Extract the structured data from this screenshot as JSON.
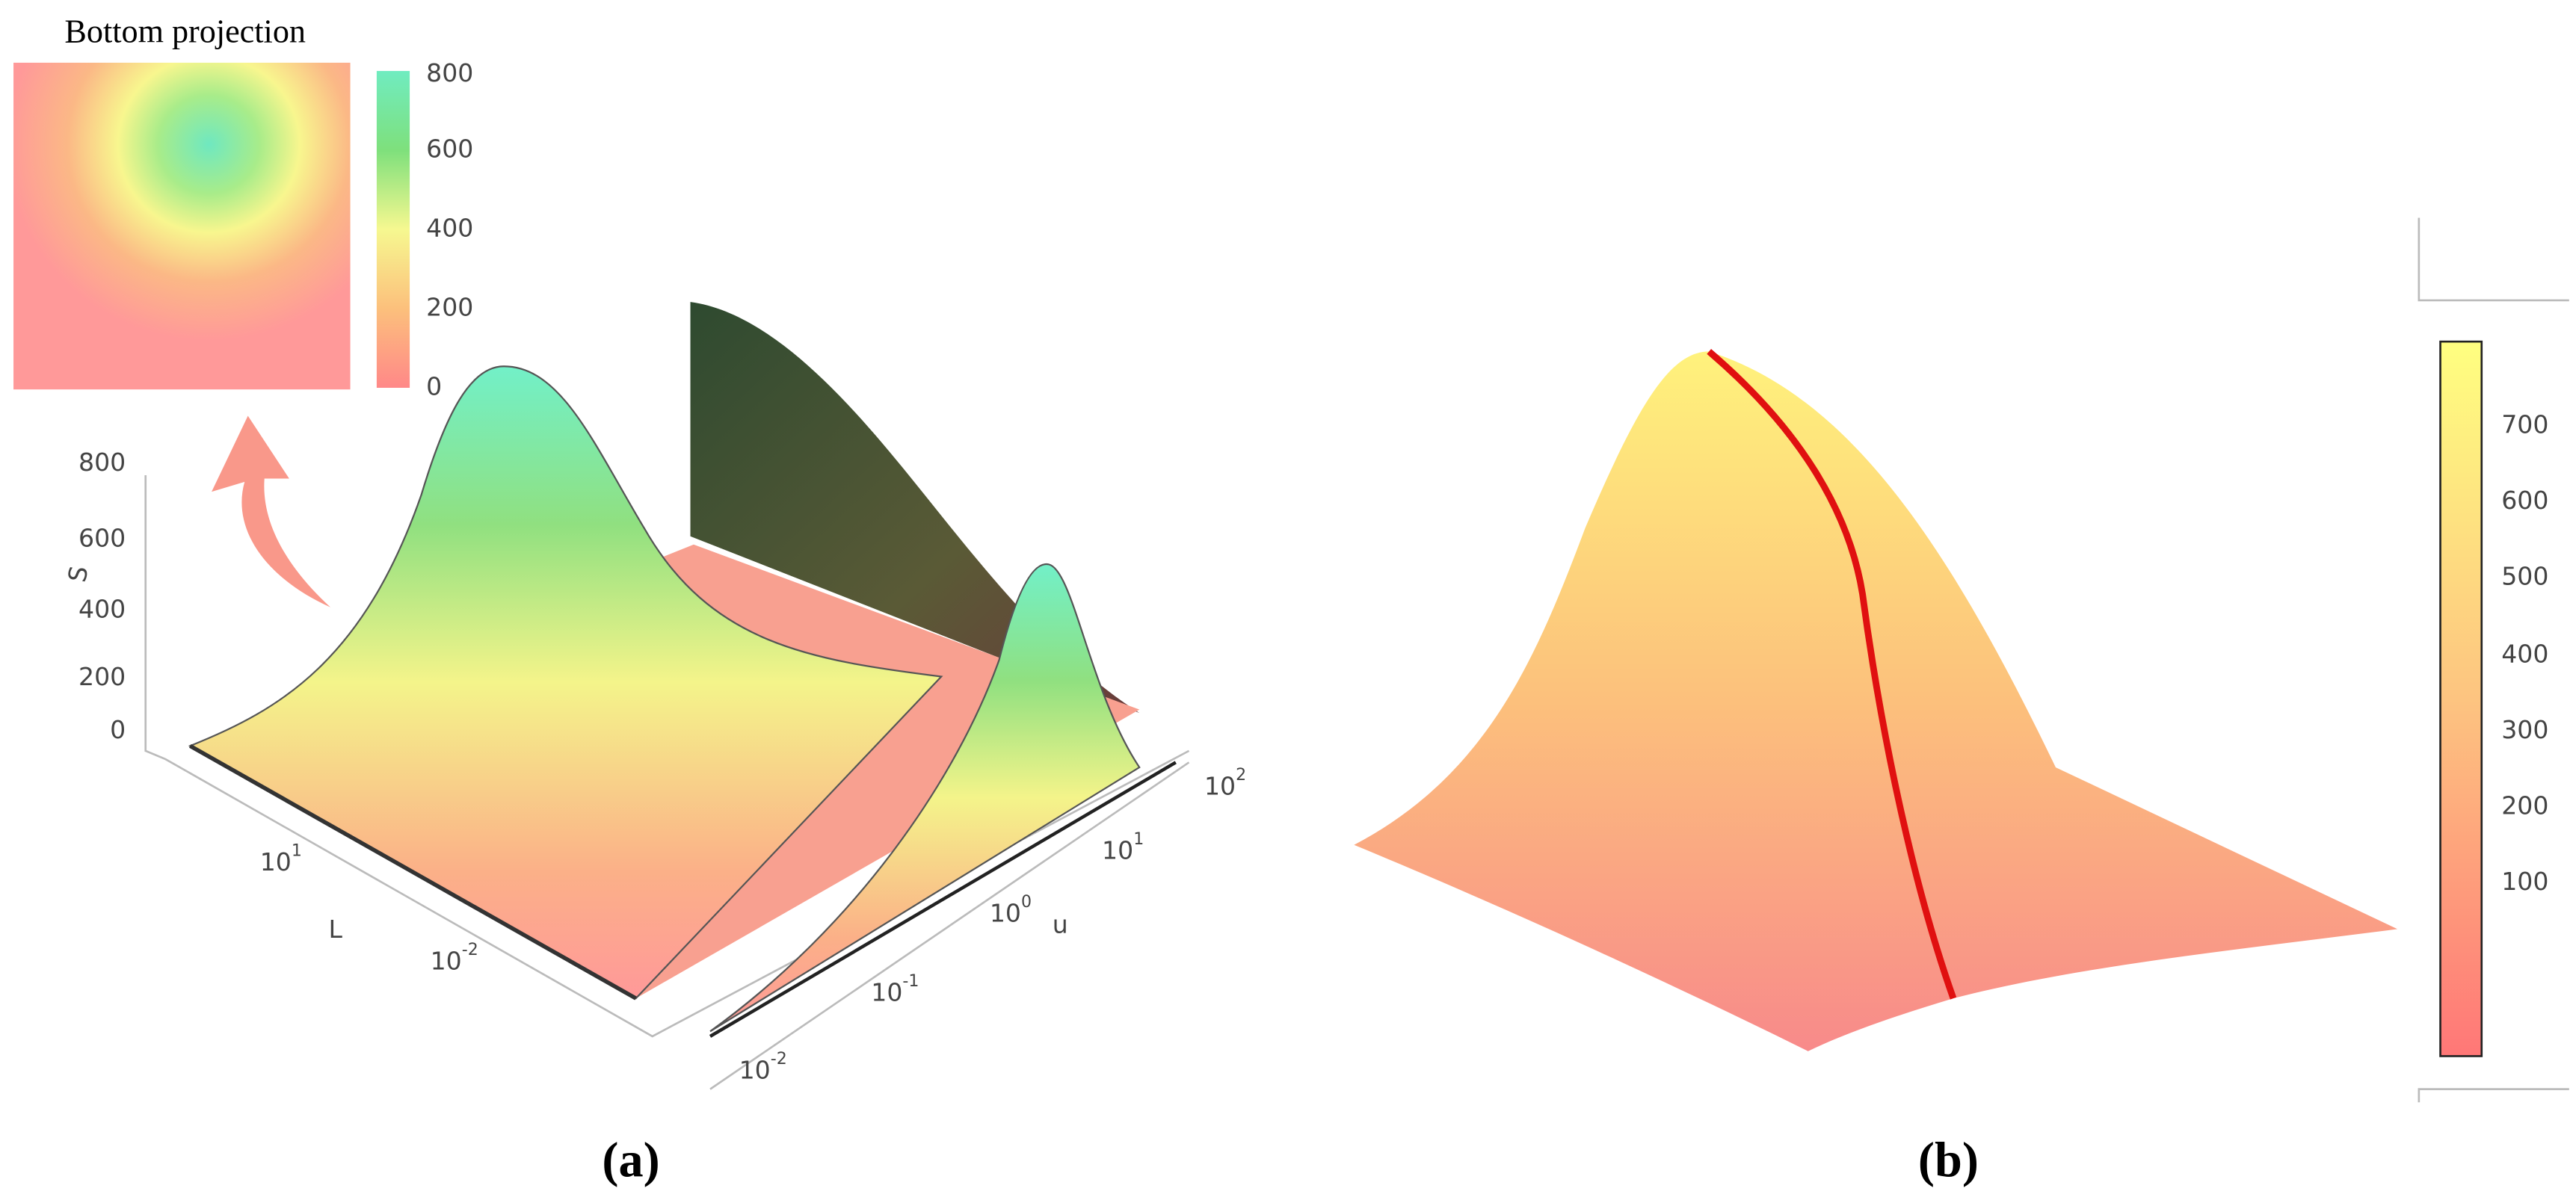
{
  "panel_a": {
    "label": "(a)",
    "inset": {
      "title": "Bottom projection",
      "colorbar_ticks": [
        800,
        600,
        400,
        200,
        0
      ]
    },
    "s_axis": {
      "label": "S",
      "ticks": [
        800,
        600,
        400,
        200,
        0
      ]
    },
    "l_axis": {
      "label": "L",
      "ticks": [
        {
          "base": "10",
          "exponent": "1"
        },
        {
          "base": "10",
          "exponent": "-2"
        }
      ]
    },
    "u_axis": {
      "label": "u",
      "ticks": [
        {
          "base": "10",
          "exponent": "2"
        },
        {
          "base": "10",
          "exponent": "1"
        },
        {
          "base": "10",
          "exponent": "0"
        },
        {
          "base": "10",
          "exponent": "-1"
        },
        {
          "base": "10",
          "exponent": "-2"
        }
      ]
    }
  },
  "panel_b": {
    "label": "(b)",
    "colorbar_ticks": [
      700,
      600,
      500,
      400,
      300,
      200,
      100
    ]
  }
}
